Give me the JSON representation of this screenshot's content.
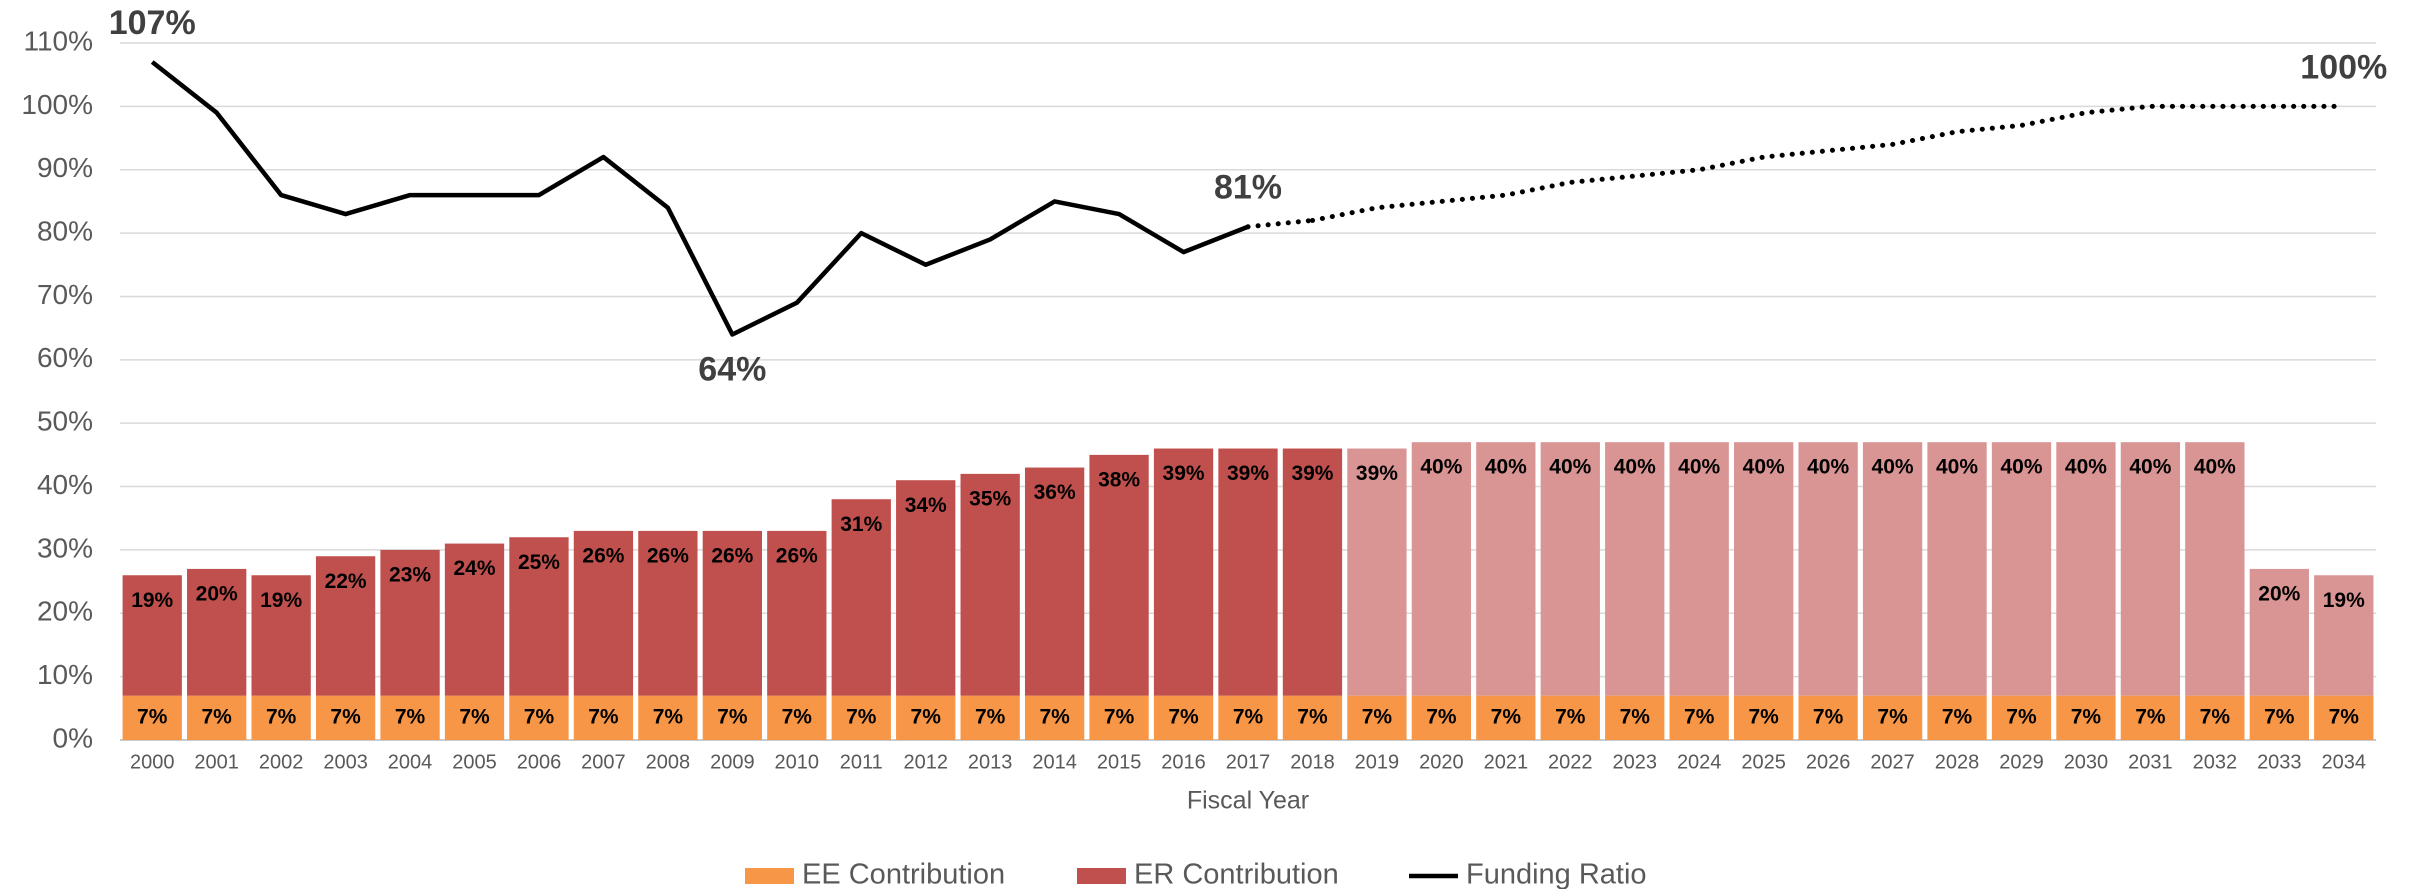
{
  "chart_data": {
    "type": "bar",
    "categories": [
      "2000",
      "2001",
      "2002",
      "2003",
      "2004",
      "2005",
      "2006",
      "2007",
      "2008",
      "2009",
      "2010",
      "2011",
      "2012",
      "2013",
      "2014",
      "2015",
      "2016",
      "2017",
      "2018",
      "2019",
      "2020",
      "2021",
      "2022",
      "2023",
      "2024",
      "2025",
      "2026",
      "2027",
      "2028",
      "2029",
      "2030",
      "2031",
      "2032",
      "2033",
      "2034"
    ],
    "x_label": "Fiscal Year",
    "ylim": [
      0,
      110
    ],
    "yticks": [
      {
        "value": 0,
        "label": "0%"
      },
      {
        "value": 10,
        "label": "10%"
      },
      {
        "value": 20,
        "label": "20%"
      },
      {
        "value": 30,
        "label": "30%"
      },
      {
        "value": 40,
        "label": "40%"
      },
      {
        "value": 50,
        "label": "50%"
      },
      {
        "value": 60,
        "label": "60%"
      },
      {
        "value": 70,
        "label": "70%"
      },
      {
        "value": 80,
        "label": "80%"
      },
      {
        "value": 90,
        "label": "90%"
      },
      {
        "value": 100,
        "label": "100%"
      },
      {
        "value": 110,
        "label": "110%"
      }
    ],
    "grid": true,
    "stacked": true,
    "legend": "bottom",
    "series": [
      {
        "name": "EE Contribution",
        "type": "bar",
        "color": "#f79646",
        "values": [
          7,
          7,
          7,
          7,
          7,
          7,
          7,
          7,
          7,
          7,
          7,
          7,
          7,
          7,
          7,
          7,
          7,
          7,
          7,
          7,
          7,
          7,
          7,
          7,
          7,
          7,
          7,
          7,
          7,
          7,
          7,
          7,
          7,
          7,
          7
        ],
        "value_labels": [
          "7%",
          "7%",
          "7%",
          "7%",
          "7%",
          "7%",
          "7%",
          "7%",
          "7%",
          "7%",
          "7%",
          "7%",
          "7%",
          "7%",
          "7%",
          "7%",
          "7%",
          "7%",
          "7%",
          "7%",
          "7%",
          "7%",
          "7%",
          "7%",
          "7%",
          "7%",
          "7%",
          "7%",
          "7%",
          "7%",
          "7%",
          "7%",
          "7%",
          "7%",
          "7%"
        ]
      },
      {
        "name": "ER Contribution",
        "type": "bar",
        "color": "#c0504d",
        "colors": [
          "#c0504d",
          "#c0504d",
          "#c0504d",
          "#c0504d",
          "#c0504d",
          "#c0504d",
          "#c0504d",
          "#c0504d",
          "#c0504d",
          "#c0504d",
          "#c0504d",
          "#c0504d",
          "#c0504d",
          "#c0504d",
          "#c0504d",
          "#c0504d",
          "#c0504d",
          "#c0504d",
          "#c0504d",
          "#d99594",
          "#d99594",
          "#d99594",
          "#d99594",
          "#d99594",
          "#d99594",
          "#d99594",
          "#d99594",
          "#d99594",
          "#d99594",
          "#d99594",
          "#d99594",
          "#d99594",
          "#d99594",
          "#d99594",
          "#d99594"
        ],
        "values": [
          19,
          20,
          19,
          22,
          23,
          24,
          25,
          26,
          26,
          26,
          26,
          31,
          34,
          35,
          36,
          38,
          39,
          39,
          39,
          39,
          40,
          40,
          40,
          40,
          40,
          40,
          40,
          40,
          40,
          40,
          40,
          40,
          40,
          20,
          19
        ],
        "value_labels": [
          "19%",
          "20%",
          "19%",
          "22%",
          "23%",
          "24%",
          "25%",
          "26%",
          "26%",
          "26%",
          "26%",
          "31%",
          "34%",
          "35%",
          "36%",
          "38%",
          "39%",
          "39%",
          "39%",
          "39%",
          "40%",
          "40%",
          "40%",
          "40%",
          "40%",
          "40%",
          "40%",
          "40%",
          "40%",
          "40%",
          "40%",
          "40%",
          "40%",
          "20%",
          "19%"
        ]
      },
      {
        "name": "Funding Ratio",
        "type": "line",
        "color": "#000000",
        "style": "solid",
        "values": [
          107,
          99,
          86,
          83,
          86,
          86,
          86,
          92,
          84,
          64,
          69,
          80,
          75,
          79,
          85,
          83,
          77,
          81,
          null,
          null,
          null,
          null,
          null,
          null,
          null,
          null,
          null,
          null,
          null,
          null,
          null,
          null,
          null,
          null,
          null
        ],
        "value_labels": [
          "107%",
          null,
          null,
          null,
          null,
          null,
          null,
          null,
          null,
          "64%",
          null,
          null,
          null,
          null,
          null,
          null,
          null,
          "81%",
          null,
          null,
          null,
          null,
          null,
          null,
          null,
          null,
          null,
          null,
          null,
          null,
          null,
          null,
          null,
          null,
          null
        ]
      },
      {
        "type": "line",
        "color": "#000000",
        "style": "dotted",
        "values": [
          null,
          null,
          null,
          null,
          null,
          null,
          null,
          null,
          null,
          null,
          null,
          null,
          null,
          null,
          null,
          null,
          null,
          null,
          82,
          84,
          85,
          86,
          88,
          89,
          90,
          92,
          93,
          94,
          96,
          97,
          99,
          100,
          100,
          100,
          100
        ],
        "value_labels": [
          null,
          null,
          null,
          null,
          null,
          null,
          null,
          null,
          null,
          null,
          null,
          null,
          null,
          null,
          null,
          null,
          null,
          null,
          null,
          null,
          null,
          null,
          null,
          null,
          null,
          null,
          null,
          null,
          null,
          null,
          null,
          null,
          null,
          null,
          "100%"
        ]
      }
    ]
  }
}
